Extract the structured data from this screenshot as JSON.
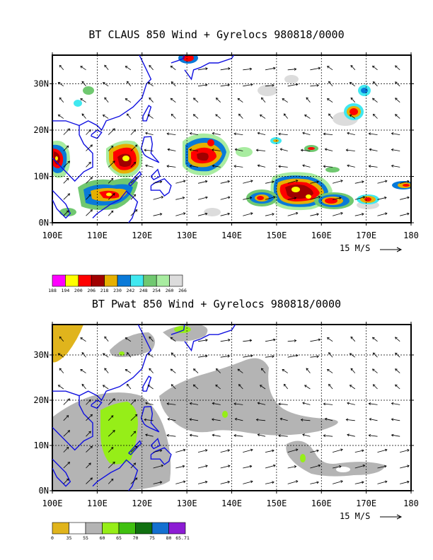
{
  "panels": [
    {
      "title": "BT CLAUS 850 Wind + Gyrelocs 980818/0000",
      "x_ticks": [
        "100E",
        "110E",
        "120E",
        "130E",
        "140E",
        "150E",
        "160E",
        "170E",
        "180"
      ],
      "y_ticks": [
        "0N",
        "10N",
        "20N",
        "30N"
      ],
      "scale_label": "15 M/S",
      "legend": {
        "colors": [
          "#ff00ff",
          "#ffff00",
          "#ff0000",
          "#a00000",
          "#e6b000",
          "#0a7ad8",
          "#40e8f0",
          "#70c870",
          "#a8eca0",
          "#dcdcdc"
        ],
        "labels": [
          "188",
          "194",
          "200",
          "206",
          "218",
          "230",
          "242",
          "248",
          "254",
          "260",
          "266"
        ]
      }
    },
    {
      "title": "BT Pwat 850 Wind + Gyrelocs 980818/0000",
      "x_ticks": [
        "100E",
        "110E",
        "120E",
        "130E",
        "140E",
        "150E",
        "160E",
        "170E",
        "180"
      ],
      "y_ticks": [
        "0N",
        "10N",
        "20N",
        "30N"
      ],
      "scale_label": "15 M/S",
      "legend": {
        "colors": [
          "#e0b41c",
          "#ffffff",
          "#b4b4b4",
          "#96ee18",
          "#40c010",
          "#107010",
          "#1470d0",
          "#8c1cd4"
        ],
        "labels": [
          "0",
          "35",
          "55",
          "60",
          "65",
          "70",
          "75",
          "80",
          "65.71"
        ]
      }
    }
  ]
}
